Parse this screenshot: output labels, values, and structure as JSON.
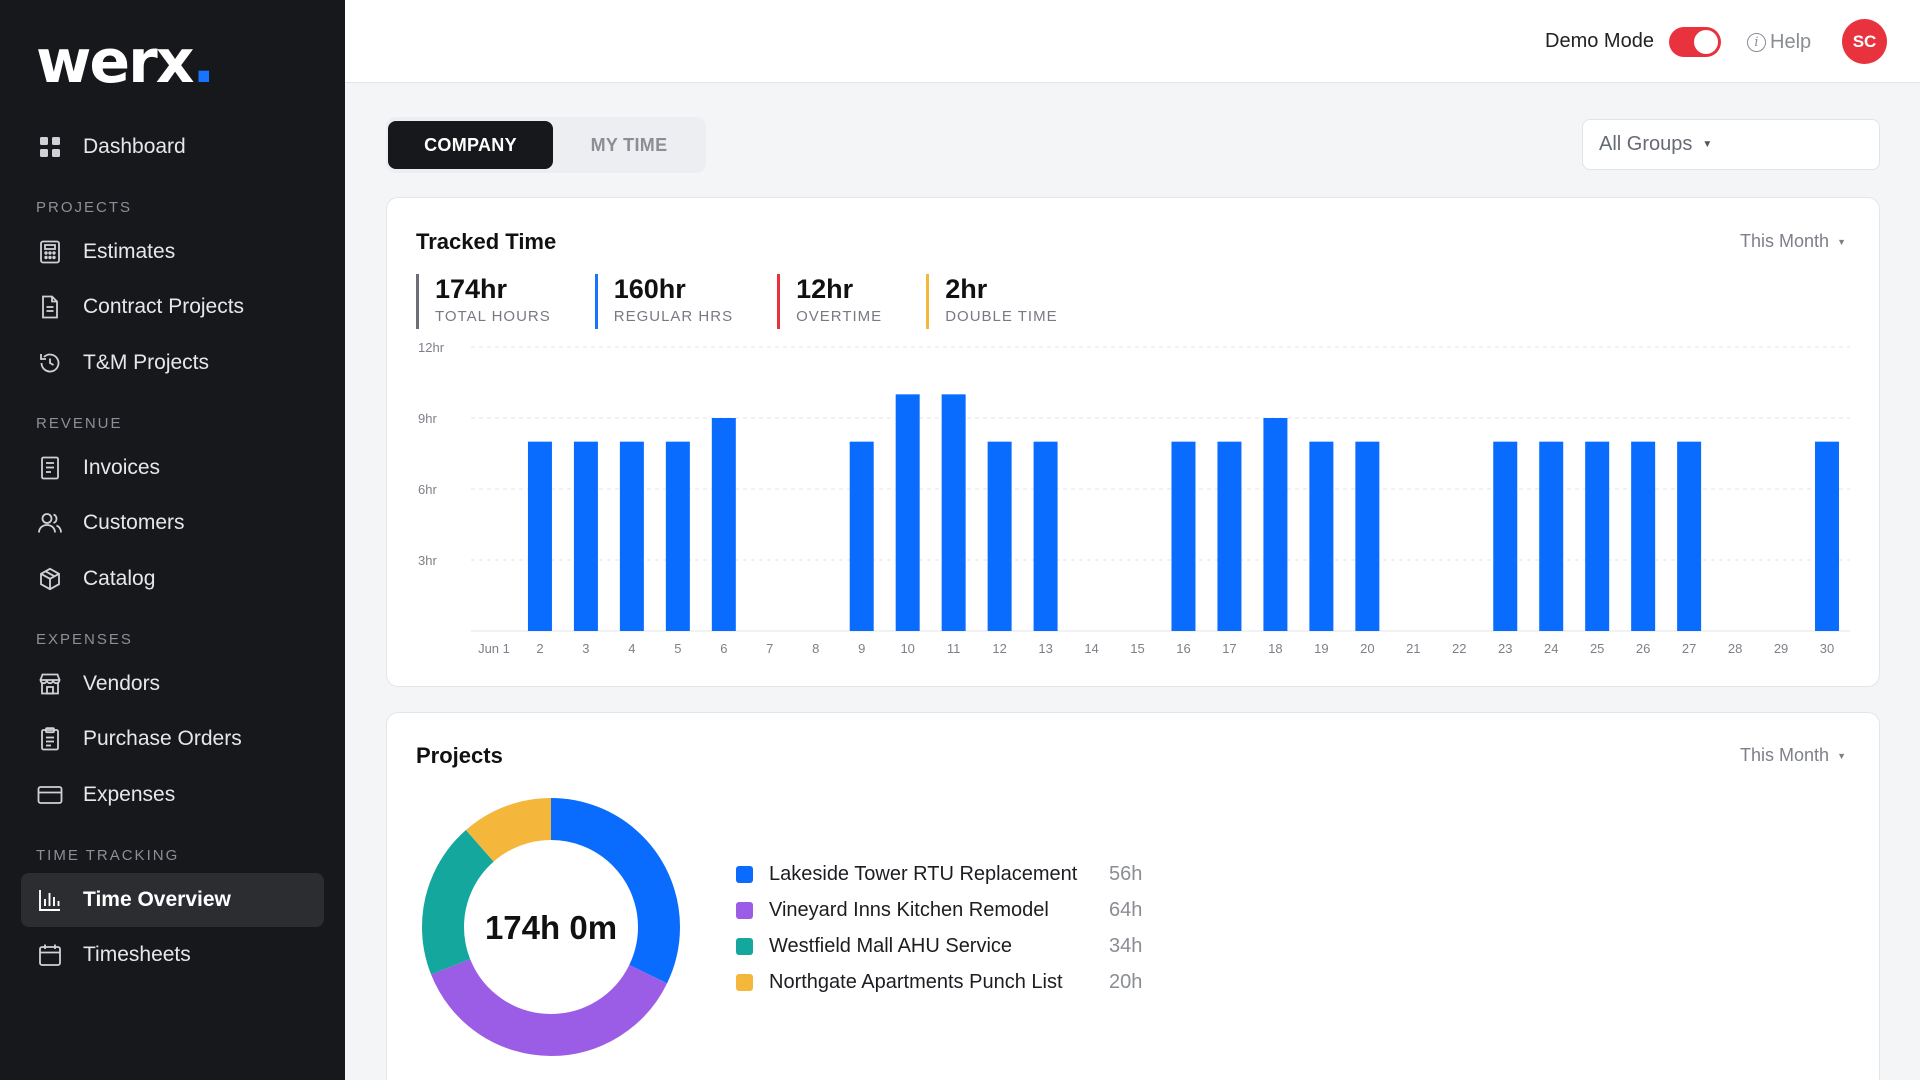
{
  "brand": {
    "name": "werx",
    "dot": "."
  },
  "sidebar": {
    "dashboard": "Dashboard",
    "sections": [
      {
        "label": "PROJECTS",
        "items": [
          "Estimates",
          "Contract Projects",
          "T&M Projects"
        ]
      },
      {
        "label": "REVENUE",
        "items": [
          "Invoices",
          "Customers",
          "Catalog"
        ]
      },
      {
        "label": "EXPENSES",
        "items": [
          "Vendors",
          "Purchase Orders",
          "Expenses"
        ]
      },
      {
        "label": "TIME TRACKING",
        "items": [
          "Time Overview",
          "Timesheets"
        ]
      }
    ],
    "active": "Time Overview"
  },
  "topbar": {
    "demo_mode": "Demo Mode",
    "demo_on": true,
    "help": "Help",
    "avatar": "SC"
  },
  "tabs": {
    "company": "COMPANY",
    "my_time": "MY TIME",
    "active": "COMPANY"
  },
  "groups_select": {
    "value": "All Groups"
  },
  "tracked": {
    "title": "Tracked Time",
    "period": "This Month",
    "stats": [
      {
        "value": "174hr",
        "label": "TOTAL HOURS",
        "color": "#6b6e75"
      },
      {
        "value": "160hr",
        "label": "REGULAR HRS",
        "color": "#1a73ff"
      },
      {
        "value": "12hr",
        "label": "OVERTIME",
        "color": "#e8333f"
      },
      {
        "value": "2hr",
        "label": "DOUBLE TIME",
        "color": "#f5b73b"
      }
    ]
  },
  "chart_data": {
    "type": "bar",
    "categories": [
      "Jun 1",
      "2",
      "3",
      "4",
      "5",
      "6",
      "7",
      "8",
      "9",
      "10",
      "11",
      "12",
      "13",
      "14",
      "15",
      "16",
      "17",
      "18",
      "19",
      "20",
      "21",
      "22",
      "23",
      "24",
      "25",
      "26",
      "27",
      "28",
      "29",
      "30"
    ],
    "values": [
      0,
      8,
      8,
      8,
      8,
      9,
      0,
      0,
      8,
      10,
      10,
      8,
      8,
      0,
      0,
      8,
      8,
      9,
      8,
      8,
      0,
      0,
      8,
      8,
      8,
      8,
      8,
      0,
      0,
      8
    ],
    "y_ticks": [
      "12hr",
      "9hr",
      "6hr",
      "3hr"
    ],
    "ylim": [
      0,
      12
    ],
    "color": "#0a6cff",
    "grid": true
  },
  "projects": {
    "title": "Projects",
    "period": "This Month",
    "total": "174h 0m",
    "items": [
      {
        "name": "Lakeside Tower RTU Replacement",
        "hours": "56h",
        "value": 56,
        "color": "#0a6cff"
      },
      {
        "name": "Vineyard Inns Kitchen Remodel",
        "hours": "64h",
        "value": 64,
        "color": "#9b5de5"
      },
      {
        "name": "Westfield Mall AHU Service",
        "hours": "34h",
        "value": 34,
        "color": "#14a79d"
      },
      {
        "name": "Northgate Apartments Punch List",
        "hours": "20h",
        "value": 20,
        "color": "#f5b73b"
      }
    ]
  }
}
